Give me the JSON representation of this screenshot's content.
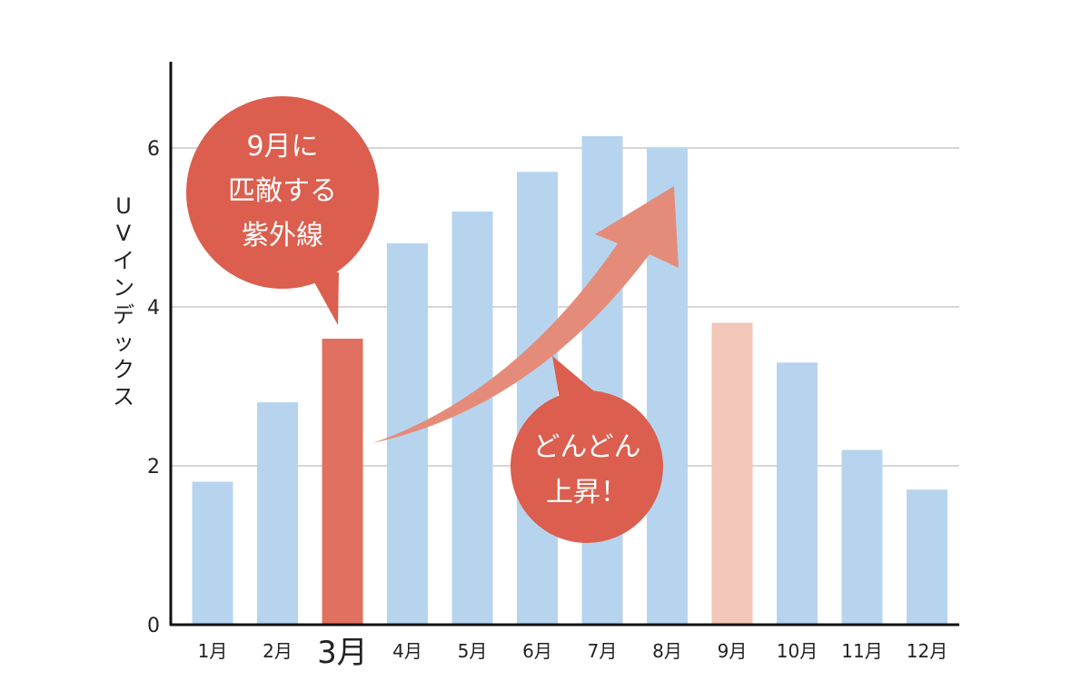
{
  "chart_data": {
    "type": "bar",
    "title": "",
    "xlabel": "",
    "ylabel": "UVインデックス",
    "categories": [
      "1月",
      "2月",
      "3月",
      "4月",
      "5月",
      "6月",
      "7月",
      "8月",
      "9月",
      "10月",
      "11月",
      "12月"
    ],
    "values": [
      1.8,
      2.8,
      3.6,
      4.8,
      5.2,
      5.7,
      6.15,
      6.0,
      3.8,
      3.3,
      2.2,
      1.7
    ],
    "highlight": {
      "3月": "#e07060",
      "9月": "#f2c6b8"
    },
    "ylim": [
      0,
      7
    ],
    "yticks": [
      0,
      2,
      4,
      6
    ],
    "grid": true,
    "annotations": [
      {
        "text_lines": [
          "9月に",
          "匹敵する",
          "紫外線"
        ]
      },
      {
        "text_lines": [
          "どんどん",
          "上昇！"
        ]
      }
    ]
  },
  "colors": {
    "bar": "#b7d4ee",
    "bar_highlight_march": "#e07060",
    "bar_highlight_sept": "#f2c6b8",
    "bubble": "#db5e4e",
    "arrow": "#e48c79",
    "march_label": "#cf3e37"
  }
}
